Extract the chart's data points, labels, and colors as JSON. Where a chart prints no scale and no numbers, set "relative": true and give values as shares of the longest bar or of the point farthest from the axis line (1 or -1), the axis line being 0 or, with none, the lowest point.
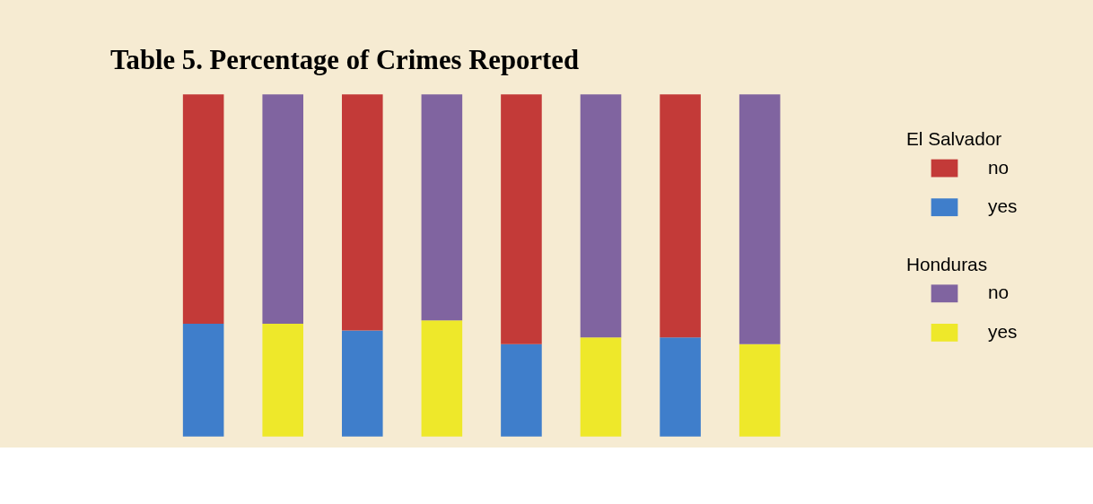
{
  "chart_data": {
    "type": "bar",
    "title": "Table 5. Percentage of Crimes Reported",
    "categories": [
      null,
      null,
      null,
      null,
      null,
      null,
      null,
      null
    ],
    "stacked": true,
    "relative": true,
    "legend": "right",
    "annotations": [
      "El Salvador",
      "Honduras"
    ],
    "series": [
      {
        "name": "yes",
        "color": "#3f7ecb",
        "values": [
          0.33,
          null,
          0.31,
          null,
          0.27,
          null,
          0.29,
          null
        ]
      },
      {
        "name": "no",
        "color": "#c33a38",
        "values": [
          0.67,
          null,
          0.69,
          null,
          0.73,
          null,
          0.71,
          null
        ]
      },
      {
        "name": "yes",
        "color": "#eee82a",
        "values": [
          null,
          0.33,
          null,
          0.34,
          null,
          0.29,
          null,
          0.27
        ]
      },
      {
        "name": "no",
        "color": "#8064a0",
        "values": [
          null,
          0.67,
          null,
          0.66,
          null,
          0.71,
          null,
          0.73
        ]
      }
    ]
  }
}
